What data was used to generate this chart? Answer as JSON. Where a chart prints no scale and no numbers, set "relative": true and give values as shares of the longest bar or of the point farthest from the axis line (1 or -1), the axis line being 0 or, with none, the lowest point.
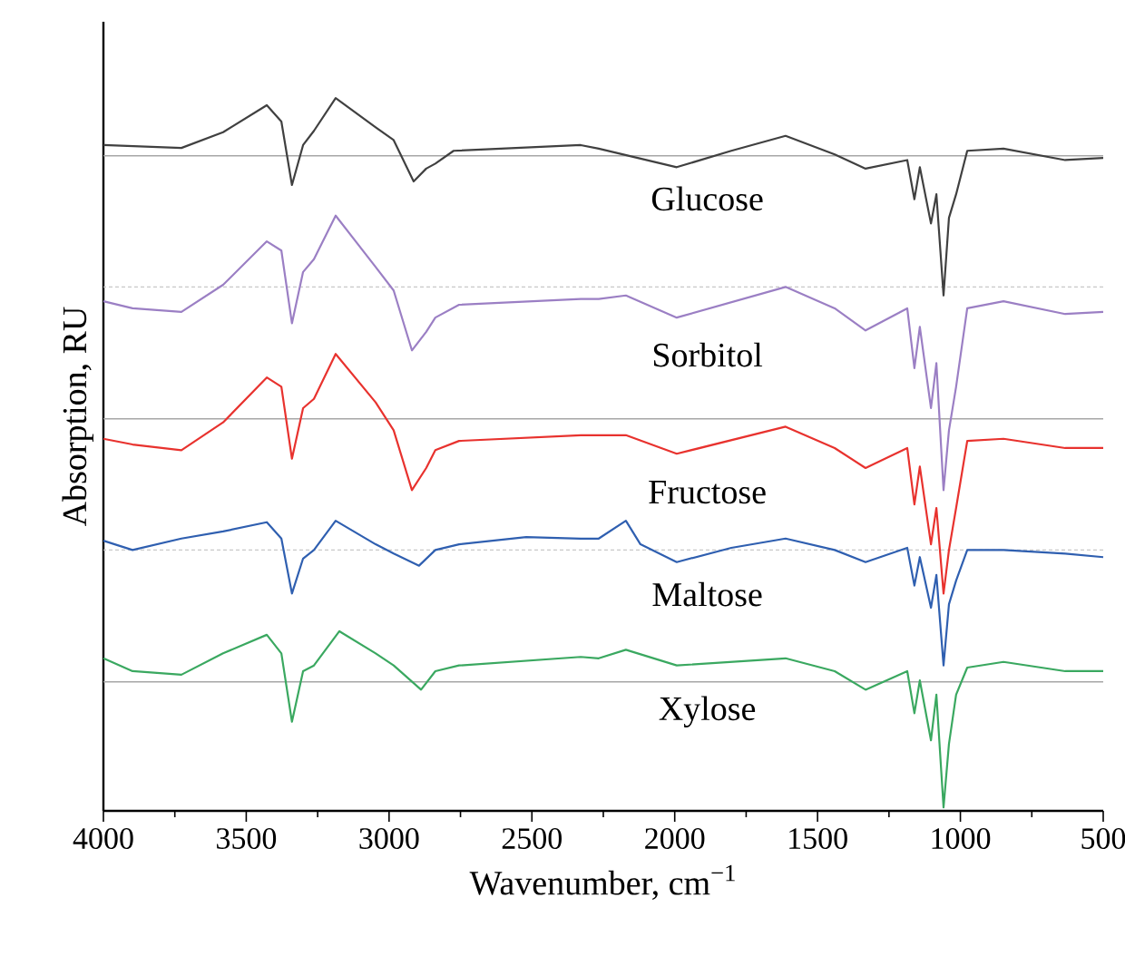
{
  "chart_data": {
    "type": "line",
    "relative": true,
    "xlabel": "Wavenumber, cm$^{−1}$",
    "ylabel": "Absorption, RU",
    "xlim": [
      4000,
      500
    ],
    "xticks": [
      4000,
      3500,
      3000,
      2500,
      2000,
      1500,
      1000,
      500
    ],
    "series": [
      {
        "name": "Glucose",
        "color": "#404040",
        "x": [
          4000,
          3727,
          3581,
          3428,
          3377,
          3340,
          3301,
          3263,
          3187,
          3047,
          2984,
          2914,
          2870,
          2838,
          2774,
          2329,
          2266,
          1993,
          1802,
          1612,
          1440,
          1332,
          1186,
          1161,
          1142,
          1103,
          1084,
          1059,
          1040,
          1015,
          976,
          849,
          633,
          500
        ],
        "values": [
          0.934,
          0.93,
          0.952,
          0.99,
          0.967,
          0.878,
          0.934,
          0.954,
          1.0,
          0.959,
          0.941,
          0.883,
          0.901,
          0.908,
          0.926,
          0.934,
          0.929,
          0.903,
          0.926,
          0.947,
          0.921,
          0.901,
          0.913,
          0.858,
          0.903,
          0.824,
          0.865,
          0.723,
          0.832,
          0.865,
          0.926,
          0.929,
          0.913,
          0.916
        ]
      },
      {
        "name": "Sorbitol",
        "color": "#9b7fc4",
        "x": [
          4000,
          3898,
          3727,
          3581,
          3428,
          3377,
          3340,
          3301,
          3263,
          3187,
          3047,
          2984,
          2920,
          2870,
          2838,
          2755,
          2329,
          2266,
          2171,
          1993,
          1612,
          1440,
          1332,
          1186,
          1161,
          1142,
          1103,
          1084,
          1059,
          1040,
          1015,
          976,
          849,
          633,
          500
        ],
        "values": [
          0.715,
          0.705,
          0.7,
          0.738,
          0.799,
          0.786,
          0.684,
          0.756,
          0.774,
          0.835,
          0.763,
          0.73,
          0.646,
          0.672,
          0.692,
          0.71,
          0.718,
          0.718,
          0.723,
          0.692,
          0.735,
          0.705,
          0.674,
          0.705,
          0.621,
          0.679,
          0.565,
          0.628,
          0.45,
          0.534,
          0.595,
          0.705,
          0.715,
          0.697,
          0.7
        ]
      },
      {
        "name": "Fructose",
        "color": "#e8322e",
        "x": [
          4000,
          3898,
          3727,
          3581,
          3428,
          3377,
          3340,
          3301,
          3263,
          3187,
          3047,
          2984,
          2920,
          2870,
          2838,
          2755,
          2329,
          2266,
          2171,
          1993,
          1612,
          1440,
          1332,
          1186,
          1161,
          1142,
          1103,
          1084,
          1059,
          1040,
          1015,
          976,
          849,
          633,
          500
        ],
        "values": [
          0.522,
          0.514,
          0.506,
          0.545,
          0.608,
          0.595,
          0.494,
          0.565,
          0.578,
          0.641,
          0.573,
          0.534,
          0.45,
          0.481,
          0.506,
          0.519,
          0.527,
          0.527,
          0.527,
          0.501,
          0.539,
          0.509,
          0.481,
          0.509,
          0.43,
          0.483,
          0.374,
          0.425,
          0.305,
          0.366,
          0.425,
          0.519,
          0.522,
          0.509,
          0.509
        ]
      },
      {
        "name": "Maltose",
        "color": "#2f5fb0",
        "x": [
          4000,
          3898,
          3727,
          3581,
          3428,
          3377,
          3340,
          3301,
          3263,
          3187,
          3047,
          2984,
          2895,
          2838,
          2755,
          2520,
          2329,
          2266,
          2171,
          2120,
          1993,
          1802,
          1612,
          1440,
          1332,
          1186,
          1161,
          1142,
          1103,
          1084,
          1059,
          1040,
          1015,
          976,
          849,
          633,
          500
        ],
        "values": [
          0.379,
          0.366,
          0.382,
          0.392,
          0.405,
          0.382,
          0.305,
          0.354,
          0.366,
          0.407,
          0.374,
          0.361,
          0.344,
          0.366,
          0.374,
          0.384,
          0.382,
          0.382,
          0.407,
          0.374,
          0.349,
          0.369,
          0.382,
          0.366,
          0.349,
          0.369,
          0.316,
          0.356,
          0.285,
          0.331,
          0.204,
          0.29,
          0.323,
          0.366,
          0.366,
          0.361,
          0.356
        ]
      },
      {
        "name": "Xylose",
        "color": "#3aa860",
        "x": [
          4000,
          3898,
          3727,
          3581,
          3428,
          3377,
          3340,
          3301,
          3263,
          3174,
          3047,
          2984,
          2888,
          2838,
          2755,
          2329,
          2266,
          2171,
          1993,
          1612,
          1440,
          1332,
          1186,
          1161,
          1142,
          1103,
          1084,
          1059,
          1040,
          1015,
          976,
          849,
          633,
          500
        ],
        "values": [
          0.214,
          0.196,
          0.191,
          0.221,
          0.247,
          0.221,
          0.125,
          0.196,
          0.204,
          0.252,
          0.221,
          0.204,
          0.17,
          0.196,
          0.204,
          0.216,
          0.214,
          0.226,
          0.204,
          0.214,
          0.196,
          0.17,
          0.196,
          0.137,
          0.183,
          0.099,
          0.163,
          0.005,
          0.094,
          0.163,
          0.201,
          0.209,
          0.196,
          0.196
        ]
      }
    ],
    "ref_lines": [
      {
        "axis": "y",
        "value": 0.919,
        "color": "#a6a6a6",
        "line_style": "solid"
      },
      {
        "axis": "y",
        "value": 0.735,
        "color": "#c8c8c8",
        "line_style": "dashed"
      },
      {
        "axis": "y",
        "value": 0.55,
        "color": "#a6a6a6",
        "line_style": "solid"
      },
      {
        "axis": "y",
        "value": 0.366,
        "color": "#c8c8c8",
        "line_style": "dashed"
      },
      {
        "axis": "y",
        "value": 0.181,
        "color": "#a6a6a6",
        "line_style": "solid"
      }
    ]
  }
}
